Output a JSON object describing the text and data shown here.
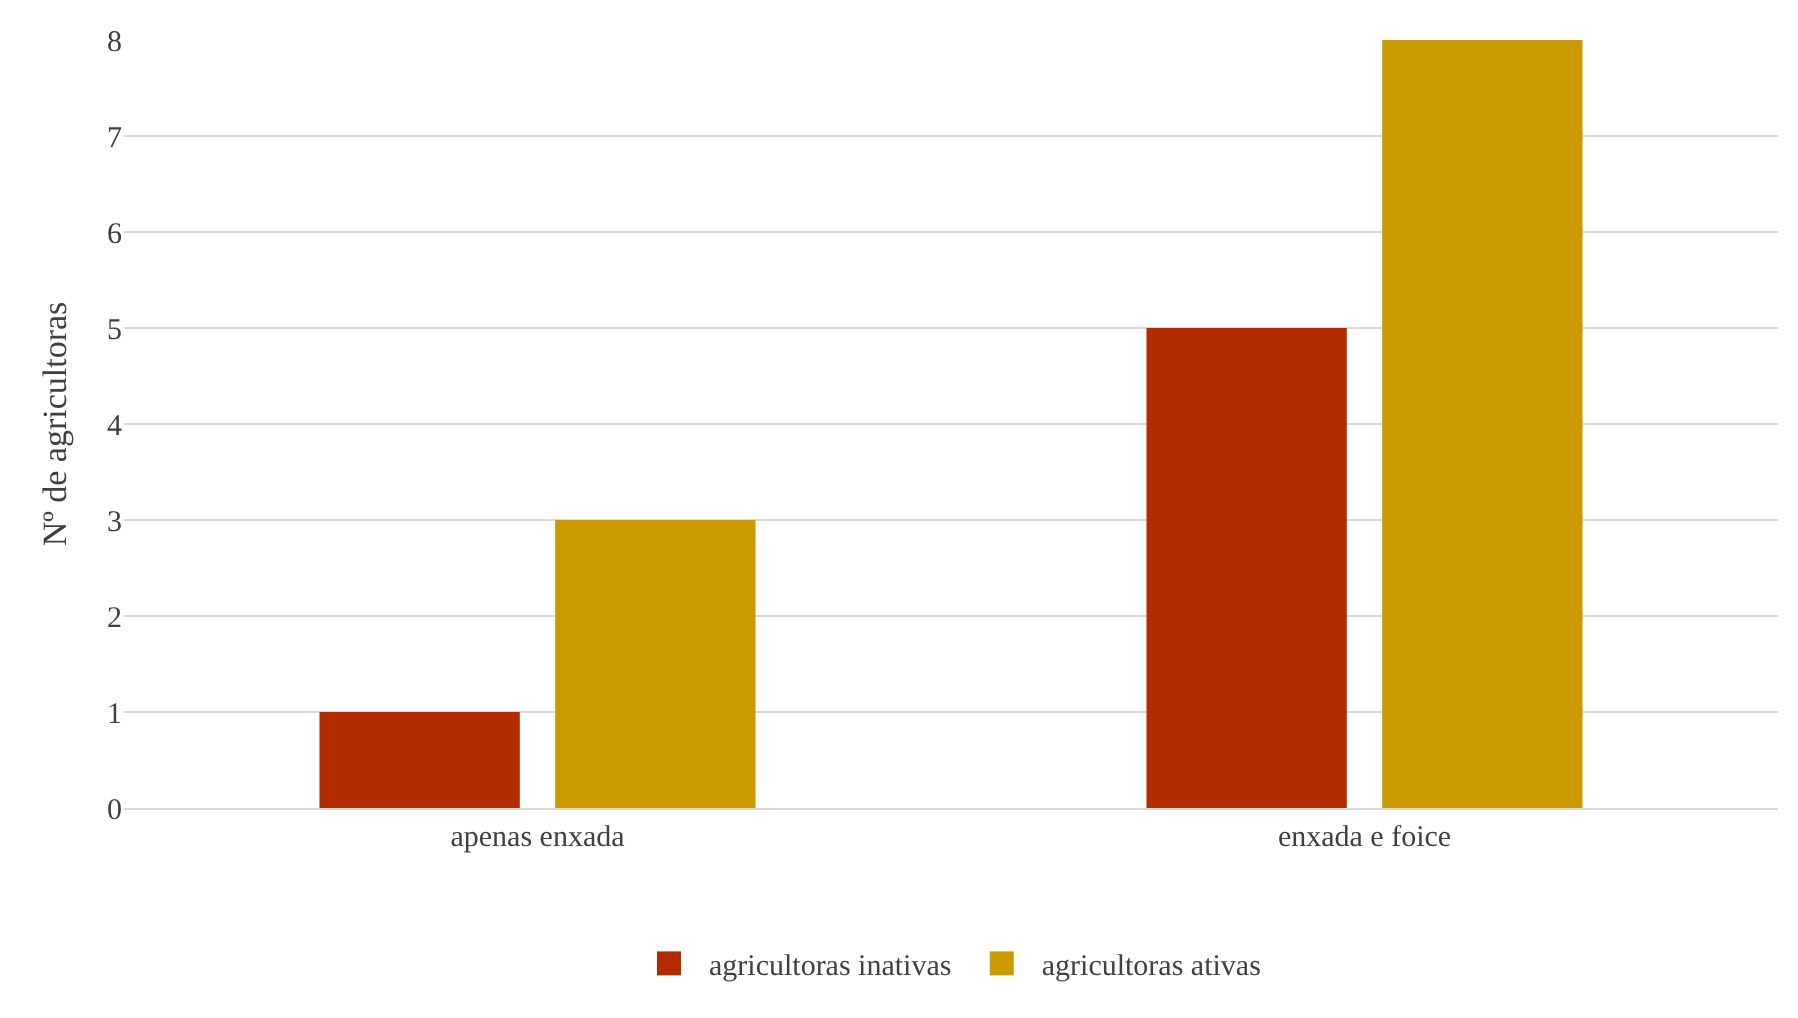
{
  "chart_data": {
    "type": "bar",
    "ylabel": "Nº de agricultoras",
    "categories": [
      "apenas enxada",
      "enxada e foice"
    ],
    "series": [
      {
        "name": "agricultoras inativas",
        "color": "#b32c00",
        "values": [
          1,
          5
        ]
      },
      {
        "name": "agricultoras ativas",
        "color": "#c99b00",
        "values": [
          3,
          8
        ]
      }
    ],
    "ylim": [
      0,
      8
    ],
    "yticks": [
      0,
      1,
      2,
      3,
      4,
      5,
      6,
      7,
      8
    ],
    "grid": "y",
    "legend": "bottom"
  }
}
